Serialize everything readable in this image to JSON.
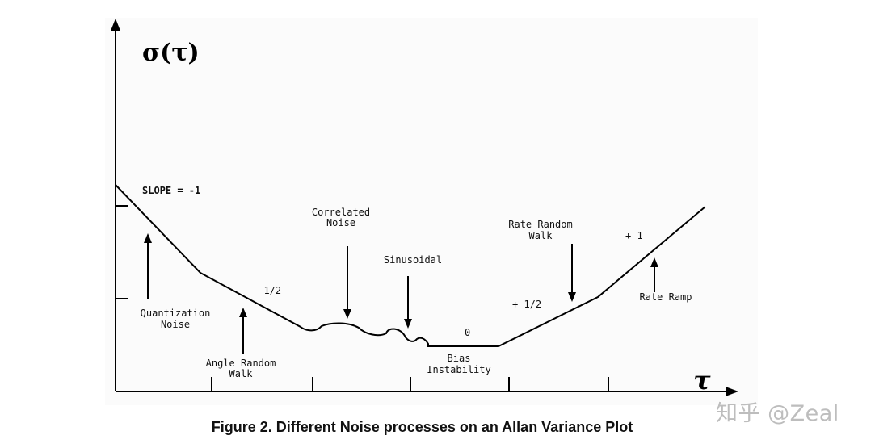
{
  "axes": {
    "y_symbol": "σ(τ)",
    "x_symbol": "τ"
  },
  "labels": {
    "slope_neg1": "SLOPE = -1",
    "quantization_1": "Quantization",
    "quantization_2": "Noise",
    "slope_neg_half": "- 1/2",
    "angle_rw_1": "Angle Random",
    "angle_rw_2": "Walk",
    "correlated_1": "Correlated",
    "correlated_2": "Noise",
    "sinusoidal": "Sinusoidal",
    "slope_zero": "0",
    "bias_1": "Bias",
    "bias_2": "Instability",
    "rate_rw_1": "Rate Random",
    "rate_rw_2": "Walk",
    "slope_pos_half": "+ 1/2",
    "slope_pos1": "+ 1",
    "rate_ramp": "Rate Ramp"
  },
  "caption": "Figure 2. Different Noise processes on an Allan Variance Plot",
  "watermark": "知乎 @Zeal"
}
